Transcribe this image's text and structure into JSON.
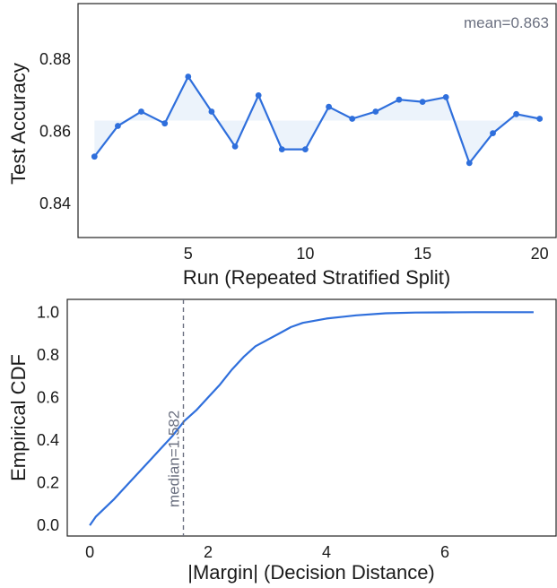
{
  "chart_data": [
    {
      "type": "line",
      "xlabel": "Run (Repeated Stratified Split)",
      "ylabel": "Test Accuracy",
      "xlim": [
        0.3,
        20.7
      ],
      "ylim": [
        0.8305,
        0.8955
      ],
      "xticks": [
        "5",
        "10",
        "15",
        "20"
      ],
      "yticks": [
        "0.84",
        "0.86",
        "0.88"
      ],
      "grid": false,
      "mean_label": "mean=0.863",
      "mean_value": 0.863,
      "color": "#2f6fdc",
      "fill_color": "#dce9f7",
      "series": [
        {
          "x": [
            1,
            2,
            3,
            4,
            5,
            6,
            7,
            8,
            9,
            10,
            11,
            12,
            13,
            14,
            15,
            16,
            17,
            18,
            19,
            20
          ],
          "values": [
            0.853,
            0.8615,
            0.8655,
            0.8622,
            0.8752,
            0.8655,
            0.8558,
            0.87,
            0.855,
            0.855,
            0.8668,
            0.8635,
            0.8655,
            0.8688,
            0.8682,
            0.8695,
            0.8512,
            0.8595,
            0.8648,
            0.8635
          ]
        }
      ]
    },
    {
      "type": "line",
      "xlabel": "|Margin| (Decision Distance)",
      "ylabel": "Empirical CDF",
      "xlim": [
        -0.38,
        7.88
      ],
      "ylim": [
        -0.05,
        1.06
      ],
      "xticks": [
        "0",
        "2",
        "4",
        "6"
      ],
      "yticks": [
        "0.0",
        "0.2",
        "0.4",
        "0.6",
        "0.8",
        "1.0"
      ],
      "grid": false,
      "median_label": "median=1.582",
      "median_value": 1.582,
      "color": "#2f6fdc",
      "series": [
        {
          "x": [
            0,
            0.1,
            0.25,
            0.4,
            0.6,
            0.8,
            1.0,
            1.2,
            1.4,
            1.6,
            1.8,
            2.0,
            2.2,
            2.4,
            2.6,
            2.8,
            3.0,
            3.2,
            3.4,
            3.6,
            3.8,
            4.0,
            4.5,
            5.0,
            5.5,
            6.0,
            6.5,
            7.0,
            7.5
          ],
          "values": [
            0.0,
            0.04,
            0.08,
            0.12,
            0.18,
            0.24,
            0.3,
            0.36,
            0.42,
            0.49,
            0.54,
            0.6,
            0.66,
            0.73,
            0.79,
            0.84,
            0.87,
            0.9,
            0.93,
            0.95,
            0.96,
            0.97,
            0.985,
            0.995,
            0.998,
            0.999,
            1.0,
            1.0,
            1.0
          ]
        }
      ]
    }
  ]
}
